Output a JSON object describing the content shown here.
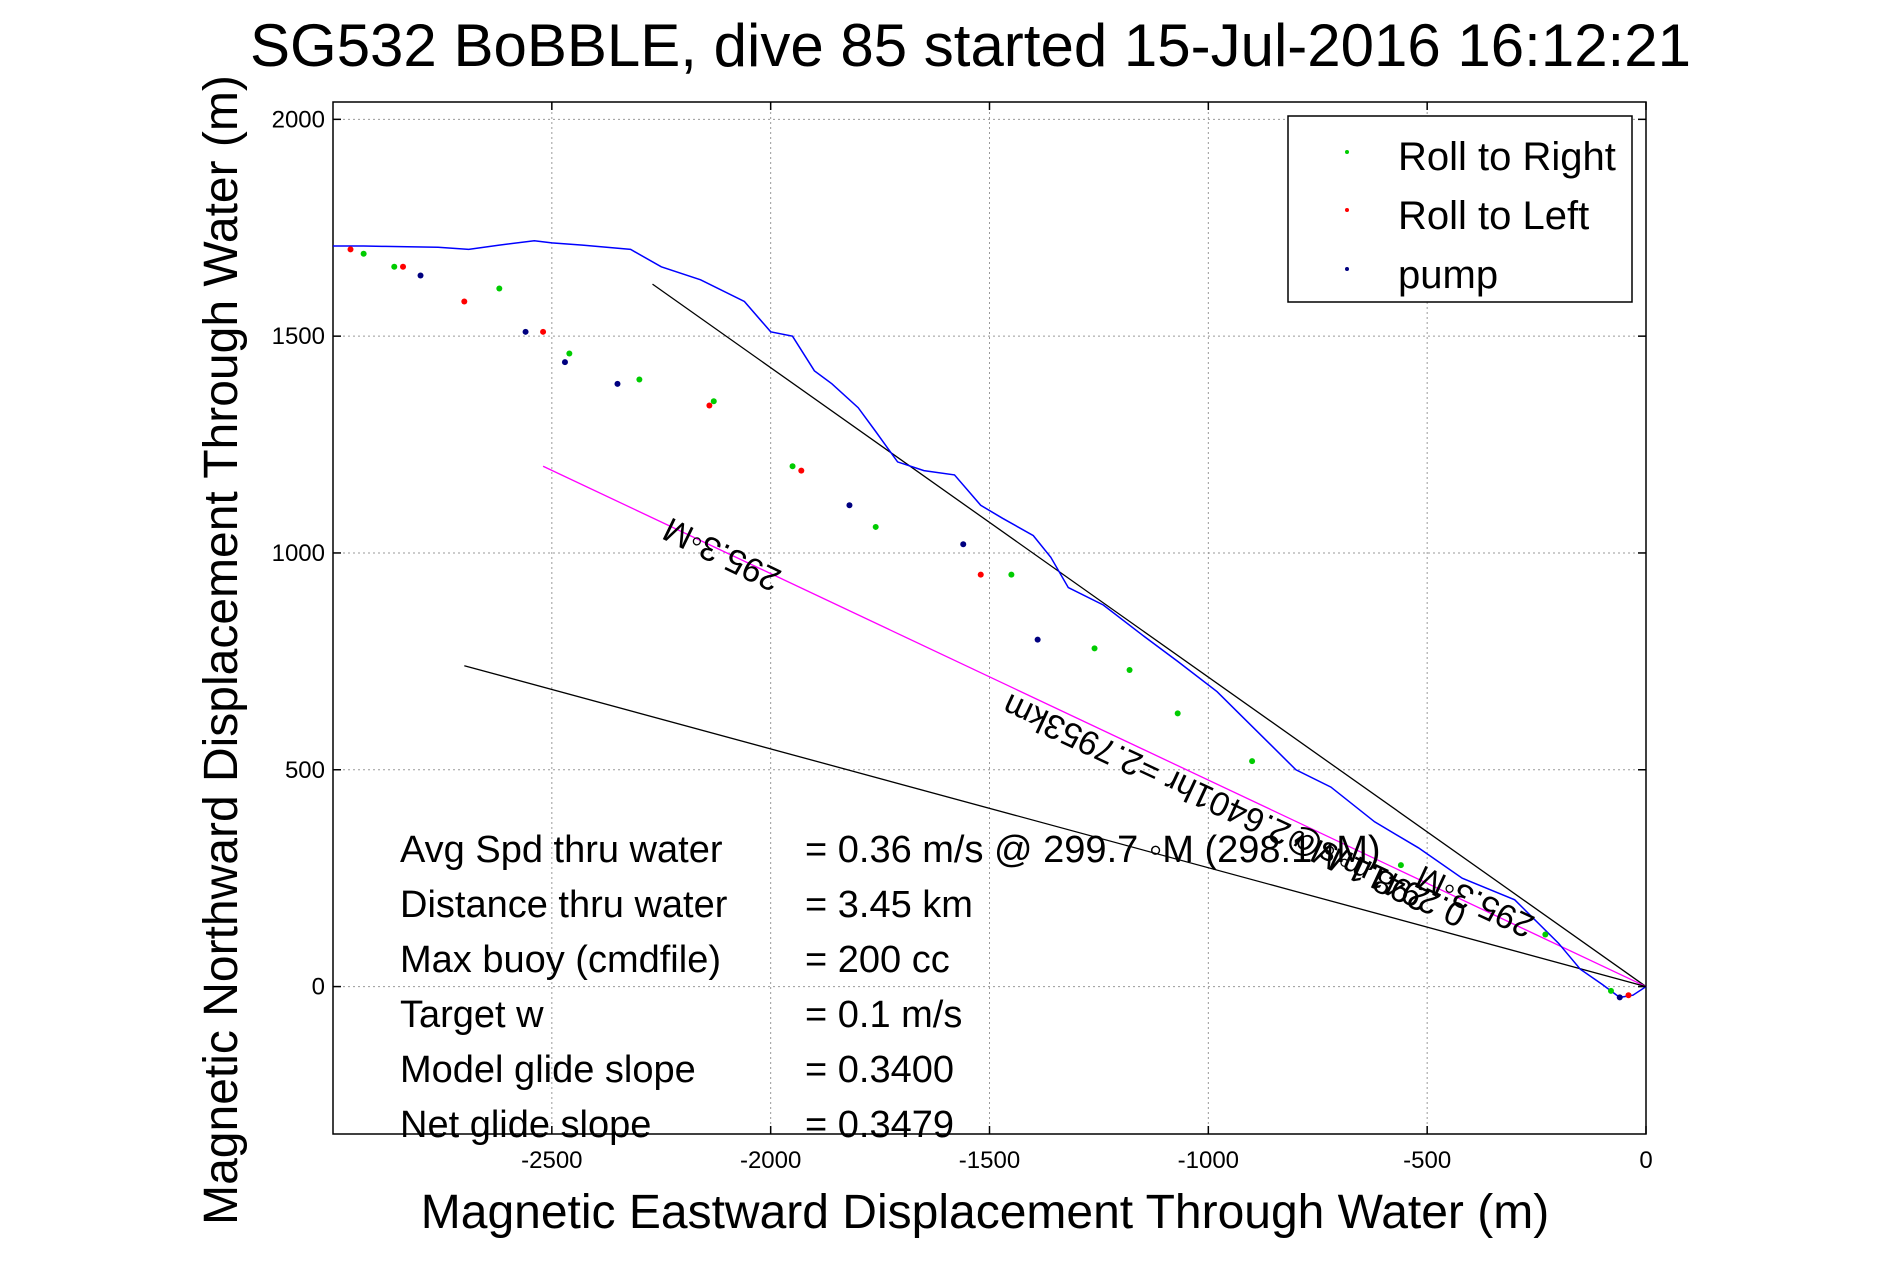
{
  "chart_data": {
    "type": "line",
    "title": "SG532 BoBBLE, dive 85 started 15-Jul-2016 16:12:21",
    "xlabel": "Magnetic Eastward Displacement Through Water (m)",
    "ylabel": "Magnetic Northward Displacement Through Water (m)",
    "xlim": [
      -3000,
      0
    ],
    "ylim": [
      -340,
      2040
    ],
    "xticks": [
      -2500,
      -2000,
      -1500,
      -1000,
      -500,
      0
    ],
    "yticks": [
      0,
      500,
      1000,
      1500,
      2000
    ],
    "grid": true,
    "legend_position": "top-right",
    "legend": [
      {
        "label": "Roll to Right",
        "color": "#00cc00"
      },
      {
        "label": "Roll to Left",
        "color": "#ff0000"
      },
      {
        "label": "pump",
        "color": "#000080"
      }
    ],
    "track": {
      "color": "#0000ff",
      "x": [
        0,
        -30,
        -60,
        -100,
        -150,
        -200,
        -300,
        -420,
        -520,
        -620,
        -720,
        -800,
        -860,
        -920,
        -980,
        -1070,
        -1150,
        -1240,
        -1320,
        -1360,
        -1400,
        -1470,
        -1520,
        -1580,
        -1650,
        -1710,
        -1760,
        -1800,
        -1860,
        -1900,
        -1950,
        -2000,
        -2060,
        -2160,
        -2250,
        -2320,
        -2430,
        -2500,
        -2540,
        -2620,
        -2690,
        -2760,
        -2830,
        -2880,
        -2930,
        -3000
      ],
      "y": [
        0,
        -20,
        -25,
        5,
        40,
        100,
        200,
        250,
        320,
        380,
        460,
        500,
        560,
        620,
        680,
        750,
        810,
        880,
        920,
        990,
        1040,
        1080,
        1110,
        1180,
        1190,
        1210,
        1280,
        1335,
        1390,
        1420,
        1500,
        1510,
        1580,
        1630,
        1660,
        1700,
        1710,
        1715,
        1720,
        1710,
        1700,
        1705,
        1706,
        1707,
        1708,
        1708
      ]
    },
    "markers": {
      "roll_right": [
        [
          -80,
          -10
        ],
        [
          -230,
          120
        ],
        [
          -560,
          280
        ],
        [
          -900,
          520
        ],
        [
          -1070,
          630
        ],
        [
          -1180,
          730
        ],
        [
          -1260,
          780
        ],
        [
          -1450,
          950
        ],
        [
          -1760,
          1060
        ],
        [
          -1950,
          1200
        ],
        [
          -2130,
          1350
        ],
        [
          -2300,
          1400
        ],
        [
          -2460,
          1460
        ],
        [
          -2620,
          1610
        ],
        [
          -2860,
          1660
        ],
        [
          -2930,
          1690
        ]
      ],
      "roll_left": [
        [
          -40,
          -20
        ],
        [
          -1520,
          950
        ],
        [
          -1930,
          1190
        ],
        [
          -2140,
          1340
        ],
        [
          -2520,
          1510
        ],
        [
          -2700,
          1580
        ],
        [
          -2840,
          1660
        ],
        [
          -2960,
          1700
        ]
      ],
      "pump": [
        [
          -60,
          -25
        ],
        [
          -1390,
          800
        ],
        [
          -1560,
          1020
        ],
        [
          -1820,
          1110
        ],
        [
          -2350,
          1390
        ],
        [
          -2470,
          1440
        ],
        [
          -2560,
          1510
        ],
        [
          -2800,
          1640
        ]
      ]
    },
    "lines": [
      {
        "name": "current heading",
        "color": "#000000",
        "x": [
          0,
          -2270
        ],
        "y": [
          0,
          1620
        ]
      },
      {
        "name": "average heading",
        "color": "#ff00ff",
        "x": [
          0,
          -2520
        ],
        "y": [
          0,
          1200
        ]
      },
      {
        "name": "lower bound",
        "color": "#000000",
        "x": [
          0,
          -2700
        ],
        "y": [
          0,
          740
        ]
      }
    ],
    "line_annotations": [
      {
        "text": "295.3◦M",
        "x": -2100,
        "y": 1020,
        "angle": 206
      },
      {
        "text": "0.2941m/s@2.6401hr =2.7953km",
        "x": -930,
        "y": 430,
        "angle": 205
      },
      {
        "text": "298.1◦M",
        "x": -620,
        "y": 280,
        "angle": 205
      },
      {
        "text": "295.3◦M",
        "x": -380,
        "y": 220,
        "angle": 205
      }
    ],
    "stats": [
      {
        "label": "Avg Spd thru water",
        "value": "=  0.36 m/s @ 299.7 ◦M (298.1 ◦M)"
      },
      {
        "label": "Distance thru water",
        "value": "=  3.45 km"
      },
      {
        "label": "Max buoy (cmdfile)",
        "value": "= 200 cc"
      },
      {
        "label": "Target w",
        "value": "= 0.1 m/s"
      },
      {
        "label": "Model glide slope",
        "value": "= 0.3400"
      },
      {
        "label": "Net glide slope",
        "value": "= 0.3479"
      }
    ]
  }
}
